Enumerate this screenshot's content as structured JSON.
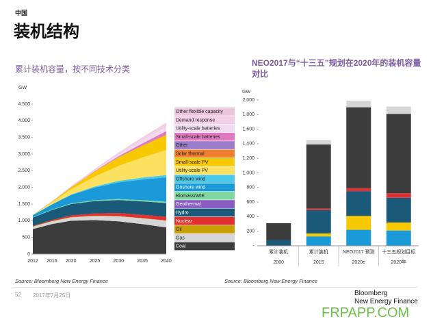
{
  "header": {
    "section": "中国",
    "title": "装机结构"
  },
  "chart_data": [
    {
      "type": "area",
      "title": "累计装机容量，按不同技术分类",
      "y_label": "GW",
      "legend": "right",
      "x": [
        2012,
        2016,
        2020,
        2025,
        2030,
        2035,
        2040
      ],
      "xlim": [
        2012,
        2040
      ],
      "xticks": [
        2012,
        2016,
        2020,
        2025,
        2030,
        2035,
        2040
      ],
      "ylim": [
        0,
        4500
      ],
      "yticks": [
        0,
        500,
        {
          "value": 1000,
          "label": "1.000"
        },
        {
          "value": 1500,
          "label": "1.500"
        },
        {
          "value": 2000,
          "label": "2.000"
        },
        {
          "value": 2500,
          "label": "2.500"
        },
        {
          "value": 3000,
          "label": "3.000"
        },
        {
          "value": 3500,
          "label": "3.500"
        },
        {
          "value": 4000,
          "label": "4.000"
        },
        {
          "value": 4500,
          "label": "4.500"
        }
      ],
      "series": [
        {
          "name": "Coal",
          "color": "#3c3c3c",
          "values": [
            750,
            900,
            1000,
            1020,
            980,
            900,
            800
          ]
        },
        {
          "name": "Gas",
          "color": "#d6d6d6",
          "values": [
            70,
            80,
            100,
            120,
            150,
            170,
            200
          ]
        },
        {
          "name": "Oil",
          "color": "#c8a000",
          "values": [
            10,
            10,
            10,
            10,
            10,
            10,
            10
          ]
        },
        {
          "name": "Nuclear",
          "color": "#e03030",
          "values": [
            15,
            30,
            50,
            70,
            90,
            100,
            110
          ]
        },
        {
          "name": "Hydro",
          "color": "#1a5a78",
          "values": [
            250,
            300,
            340,
            370,
            390,
            400,
            410
          ]
        },
        {
          "name": "Geothermal",
          "color": "#8a5cc0",
          "values": [
            1,
            1,
            1,
            1,
            1,
            1,
            1
          ]
        },
        {
          "name": "Biomass/WtE",
          "color": "#7ed8a0",
          "values": [
            10,
            15,
            20,
            25,
            30,
            35,
            40
          ]
        },
        {
          "name": "Onshore wind",
          "color": "#1a9ad8",
          "values": [
            60,
            150,
            250,
            380,
            500,
            620,
            730
          ]
        },
        {
          "name": "Offshore wind",
          "color": "#4cc8e8",
          "values": [
            1,
            5,
            15,
            30,
            45,
            60,
            70
          ]
        },
        {
          "name": "Utility-scale PV",
          "color": "#fce060",
          "values": [
            5,
            60,
            150,
            300,
            450,
            600,
            750
          ]
        },
        {
          "name": "Small-scale PV",
          "color": "#f8c800",
          "values": [
            2,
            20,
            60,
            150,
            250,
            350,
            450
          ]
        },
        {
          "name": "Solar thermal",
          "color": "#f08030",
          "values": [
            0,
            1,
            3,
            5,
            8,
            10,
            12
          ]
        },
        {
          "name": "Other",
          "color": "#9a7cc8",
          "values": [
            5,
            5,
            5,
            5,
            5,
            5,
            5
          ]
        },
        {
          "name": "Small-scale batteries",
          "color": "#e07ac0",
          "values": [
            0,
            0,
            2,
            10,
            30,
            60,
            100
          ]
        },
        {
          "name": "Utility-scale batteries",
          "color": "#f0dcf0",
          "values": [
            0,
            1,
            5,
            15,
            40,
            80,
            120
          ]
        },
        {
          "name": "Demand response",
          "color": "#f4d0e8",
          "values": [
            0,
            5,
            20,
            40,
            60,
            80,
            100
          ]
        },
        {
          "name": "Other flexible capacity",
          "color": "#ecc4dc",
          "values": [
            0,
            0,
            0,
            5,
            10,
            20,
            30
          ]
        }
      ],
      "source": "Source: Bloomberg New Energy Finance"
    },
    {
      "type": "bar",
      "title": "NEO2017与“十三五”规划在2020年的装机容量对比",
      "y_label": "GW",
      "categories": [
        [
          "累计装机",
          "2000"
        ],
        [
          "累计装机",
          "2015"
        ],
        [
          "NEO2017 预测",
          "2020e"
        ],
        [
          "十三五规划目标",
          "2020年"
        ]
      ],
      "ylim": [
        0,
        2000
      ],
      "yticks": [
        {
          "value": 0,
          "label": "-"
        },
        200,
        400,
        600,
        800,
        {
          "value": 1000,
          "label": "1,000"
        },
        {
          "value": 1200,
          "label": "1,200"
        },
        {
          "value": 1400,
          "label": "1,400"
        },
        {
          "value": 1600,
          "label": "1,600"
        },
        {
          "value": 1800,
          "label": "1,800"
        },
        {
          "value": 2000,
          "label": "2,000"
        }
      ],
      "series": [
        {
          "color": "#1a9ad8",
          "values": [
            0,
            130,
            220,
            210
          ]
        },
        {
          "color": "#f8c800",
          "values": [
            0,
            40,
            190,
            110
          ]
        },
        {
          "color": "#1a5a78",
          "values": [
            80,
            320,
            340,
            340
          ]
        },
        {
          "color": "#e03030",
          "values": [
            0,
            20,
            40,
            60
          ]
        },
        {
          "color": "#3c3c3c",
          "values": [
            230,
            880,
            1110,
            1090
          ]
        },
        {
          "color": "#d6d6d6",
          "values": [
            0,
            60,
            90,
            100
          ]
        }
      ],
      "source": "Source: Bloomberg New Energy Finance"
    }
  ],
  "footer": {
    "page": "52",
    "date": "2017年7月25日",
    "brand": [
      "Bloomberg",
      "New Energy Finance"
    ],
    "watermark": "FRPAPP.COM"
  }
}
